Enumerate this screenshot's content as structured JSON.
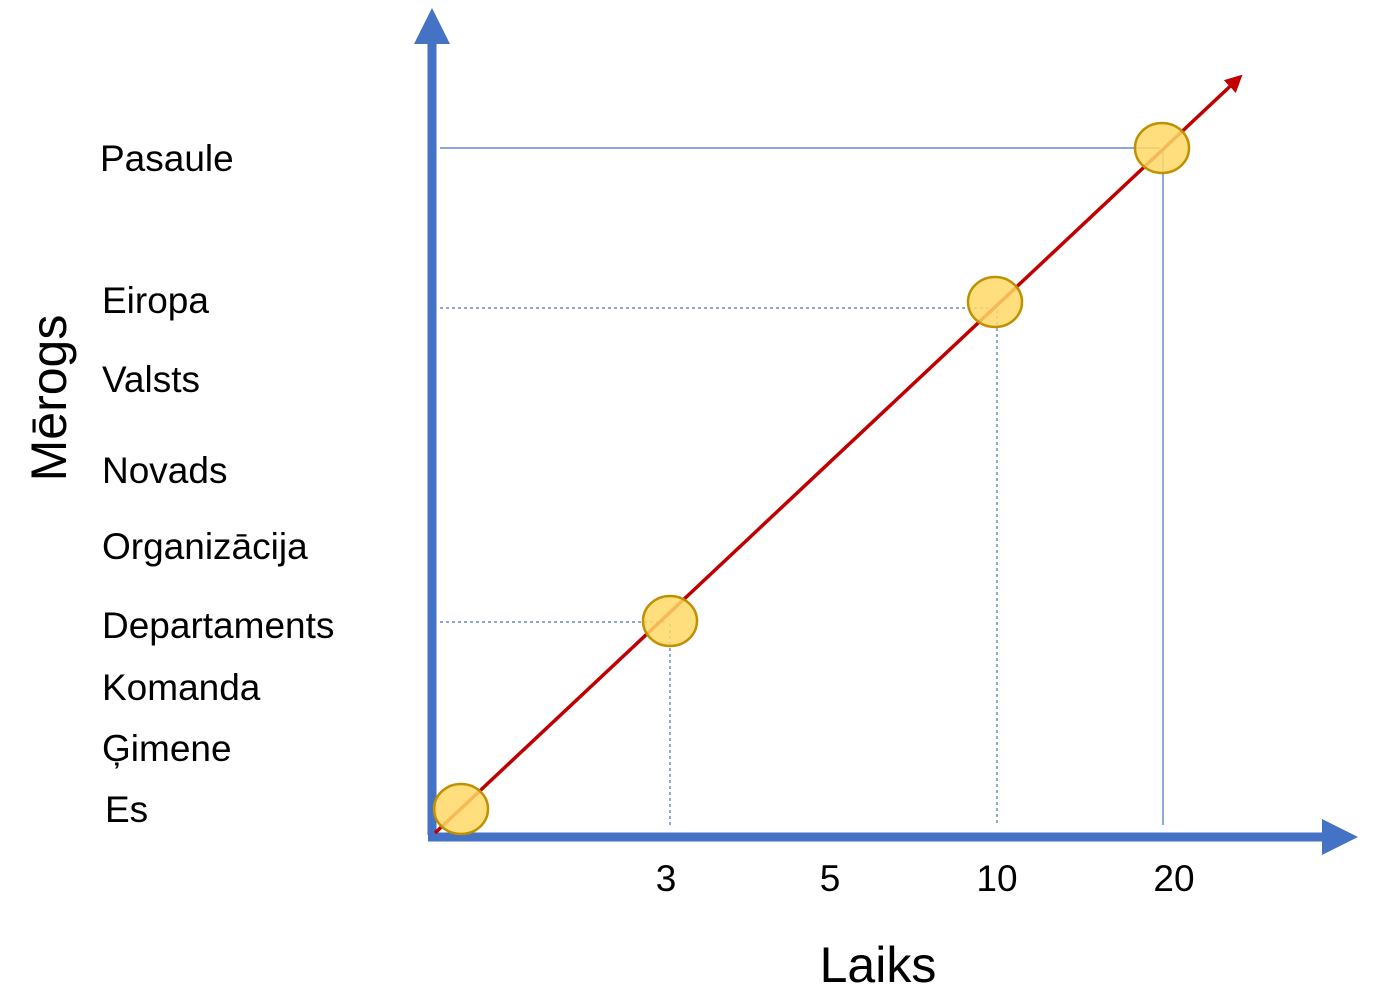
{
  "chart_data": {
    "type": "line",
    "xlabel": "Laiks",
    "ylabel": "Mērogs",
    "x_ticks": [
      "3",
      "5",
      "10",
      "20"
    ],
    "y_levels": [
      "Es",
      "Ģimene",
      "Komanda",
      "Departaments",
      "Organizācija",
      "Novads",
      "Valsts",
      "Eiropa",
      "Pasaule"
    ],
    "highlighted_points": [
      {
        "x": "0",
        "y": "Es"
      },
      {
        "x": "3",
        "y": "Departaments"
      },
      {
        "x": "10",
        "y": "Eiropa"
      },
      {
        "x": "20",
        "y": "Pasaule"
      }
    ],
    "colors": {
      "axes": "#4472C4",
      "trend_line": "#C00000",
      "points_fill": "#FFD966",
      "points_stroke": "#BF9000",
      "guides": "#4472C4"
    }
  }
}
